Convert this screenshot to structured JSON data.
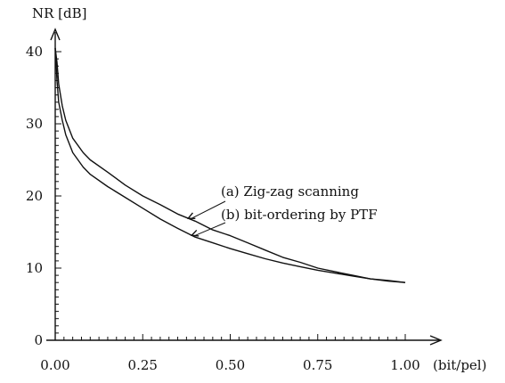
{
  "chart_data": {
    "type": "line",
    "title": "",
    "ylabel": "NR [dB]",
    "xlabel": "(bit/pel)",
    "xlim": [
      0,
      1.0
    ],
    "ylim": [
      0,
      40
    ],
    "x_ticks": [
      0,
      0.25,
      0.5,
      0.75,
      1.0
    ],
    "x_tick_labels": [
      "0.00",
      "0.25",
      "0.50",
      "0.75",
      "1.00"
    ],
    "y_ticks": [
      0,
      10,
      20,
      30,
      40
    ],
    "y_tick_labels": [
      "0",
      "10",
      "20",
      "30",
      "40"
    ],
    "grid": false,
    "series": [
      {
        "name": "(a) Zig-zag scanning",
        "x": [
          0.0,
          0.005,
          0.01,
          0.02,
          0.03,
          0.05,
          0.08,
          0.1,
          0.15,
          0.2,
          0.25,
          0.3,
          0.35,
          0.4,
          0.45,
          0.5,
          0.55,
          0.6,
          0.65,
          0.7,
          0.75,
          0.8,
          0.85,
          0.9,
          0.95,
          1.0
        ],
        "values": [
          40.5,
          38.5,
          35.5,
          32.5,
          30.5,
          28.0,
          26.0,
          25.0,
          23.3,
          21.5,
          20.0,
          18.8,
          17.5,
          16.5,
          15.3,
          14.5,
          13.5,
          12.5,
          11.5,
          10.8,
          10.0,
          9.5,
          9.0,
          8.5,
          8.3,
          8.0
        ]
      },
      {
        "name": "(b) bit-ordering by PTF",
        "x": [
          0.0,
          0.005,
          0.01,
          0.02,
          0.03,
          0.05,
          0.08,
          0.1,
          0.15,
          0.2,
          0.25,
          0.3,
          0.35,
          0.4,
          0.45,
          0.5,
          0.55,
          0.6,
          0.65,
          0.7,
          0.75,
          0.8,
          0.85,
          0.9,
          0.95,
          1.0
        ],
        "values": [
          40.5,
          36.0,
          33.0,
          30.5,
          28.5,
          26.0,
          24.0,
          23.0,
          21.3,
          19.8,
          18.3,
          16.8,
          15.5,
          14.3,
          13.5,
          12.7,
          12.0,
          11.3,
          10.7,
          10.2,
          9.7,
          9.3,
          8.9,
          8.5,
          8.2,
          8.0
        ]
      }
    ],
    "annotations": [
      {
        "text": "(a) Zig-zag scanning",
        "series": 0,
        "at_x": 0.38
      },
      {
        "text": "(b) bit-ordering by PTF",
        "series": 1,
        "at_x": 0.39
      }
    ]
  }
}
